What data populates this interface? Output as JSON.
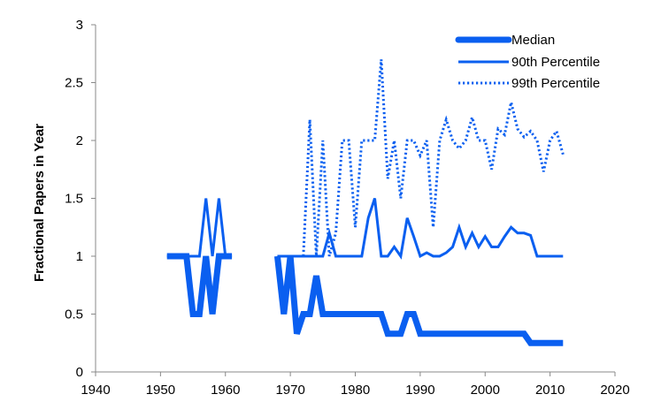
{
  "chart_data": {
    "type": "line",
    "title": "",
    "xlabel": "",
    "ylabel": "Fractional Papers in Year",
    "xlim": [
      1940,
      2020
    ],
    "ylim": [
      0,
      3
    ],
    "xticks": [
      1940,
      1950,
      1960,
      1970,
      1980,
      1990,
      2000,
      2010,
      2020
    ],
    "yticks": [
      0,
      0.5,
      1,
      1.5,
      2,
      2.5,
      3
    ],
    "ytick_labels": [
      "0",
      "0.5",
      "1",
      "1.5",
      "2",
      "2.5",
      "3"
    ],
    "grid": false,
    "legend_position": "top-right",
    "color": "#0a5ff0",
    "series": [
      {
        "name": "Median",
        "style": "thick",
        "segments": [
          {
            "x": [
              1951,
              1952,
              1953,
              1954,
              1955,
              1956,
              1957,
              1958,
              1959,
              1960,
              1961
            ],
            "y": [
              1,
              1,
              1,
              1,
              0.5,
              0.5,
              1,
              0.5,
              1,
              1,
              1
            ]
          },
          {
            "x": [
              1968,
              1969,
              1970,
              1971,
              1972,
              1973,
              1974,
              1975,
              1976,
              1977,
              1978,
              1979,
              1980,
              1981,
              1982,
              1983,
              1984,
              1985,
              1986,
              1987,
              1988,
              1989,
              1990,
              1991,
              1992,
              1993,
              1994,
              1995,
              1996,
              1997,
              1998,
              1999,
              2000,
              2001,
              2002,
              2003,
              2004,
              2005,
              2006,
              2007,
              2008,
              2009,
              2010,
              2011,
              2012
            ],
            "y": [
              1,
              0.5,
              1,
              0.33,
              0.5,
              0.5,
              0.83,
              0.5,
              0.5,
              0.5,
              0.5,
              0.5,
              0.5,
              0.5,
              0.5,
              0.5,
              0.5,
              0.33,
              0.33,
              0.33,
              0.5,
              0.5,
              0.33,
              0.33,
              0.33,
              0.33,
              0.33,
              0.33,
              0.33,
              0.33,
              0.33,
              0.33,
              0.33,
              0.33,
              0.33,
              0.33,
              0.33,
              0.33,
              0.33,
              0.25,
              0.25,
              0.25,
              0.25,
              0.25,
              0.25
            ]
          }
        ]
      },
      {
        "name": "90th Percentile",
        "style": "solid",
        "segments": [
          {
            "x": [
              1951,
              1952,
              1953,
              1954,
              1955,
              1956,
              1957,
              1958,
              1959,
              1960,
              1961
            ],
            "y": [
              1,
              1,
              1,
              1,
              1,
              1,
              1.5,
              1,
              1.5,
              1,
              1
            ]
          },
          {
            "x": [
              1968,
              1969,
              1970,
              1971,
              1972,
              1973,
              1974,
              1975,
              1976,
              1977,
              1978,
              1979,
              1980,
              1981,
              1982,
              1983,
              1984,
              1985,
              1986,
              1987,
              1988,
              1989,
              1990,
              1991,
              1992,
              1993,
              1994,
              1995,
              1996,
              1997,
              1998,
              1999,
              2000,
              2001,
              2002,
              2003,
              2004,
              2005,
              2006,
              2007,
              2008,
              2009,
              2010,
              2011,
              2012
            ],
            "y": [
              1,
              1,
              1,
              1,
              1,
              1,
              1,
              1,
              1.2,
              1,
              1,
              1,
              1,
              1,
              1.33,
              1.5,
              1,
              1,
              1.08,
              1,
              1.33,
              1.17,
              1,
              1.03,
              1,
              1,
              1.03,
              1.08,
              1.25,
              1.08,
              1.2,
              1.08,
              1.17,
              1.08,
              1.08,
              1.17,
              1.25,
              1.2,
              1.2,
              1.18,
              1,
              1,
              1,
              1,
              1
            ]
          }
        ]
      },
      {
        "name": "99th Percentile",
        "style": "dotted",
        "segments": [
          {
            "x": [
              1972,
              1973,
              1974,
              1975,
              1976,
              1977,
              1978,
              1979,
              1980,
              1981,
              1982,
              1983,
              1984,
              1985,
              1986,
              1987,
              1988,
              1989,
              1990,
              1991,
              1992,
              1993,
              1994,
              1995,
              1996,
              1997,
              1998,
              1999,
              2000,
              2001,
              2002,
              2003,
              2004,
              2005,
              2006,
              2007,
              2008,
              2009,
              2010,
              2011,
              2012
            ],
            "y": [
              1,
              2.18,
              1,
              2,
              1,
              1.2,
              2,
              2,
              1.25,
              2,
              2,
              2,
              2.7,
              1.67,
              2,
              1.5,
              2,
              2,
              1.87,
              2,
              1.25,
              2,
              2.18,
              2,
              1.93,
              2,
              2.2,
              2,
              2,
              1.75,
              2.1,
              2.05,
              2.33,
              2.1,
              2.03,
              2.08,
              2,
              1.73,
              2,
              2.08,
              1.88
            ]
          }
        ]
      }
    ]
  }
}
